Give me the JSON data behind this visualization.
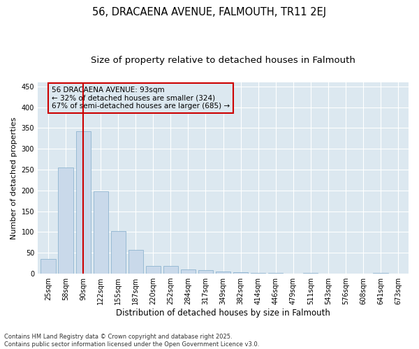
{
  "title": "56, DRACAENA AVENUE, FALMOUTH, TR11 2EJ",
  "subtitle": "Size of property relative to detached houses in Falmouth",
  "xlabel": "Distribution of detached houses by size in Falmouth",
  "ylabel": "Number of detached properties",
  "bar_color": "#c9d9ea",
  "bar_edgecolor": "#8fb4d0",
  "plot_bg_color": "#dce8f0",
  "fig_bg_color": "#ffffff",
  "grid_color": "#ffffff",
  "categories": [
    "25sqm",
    "58sqm",
    "90sqm",
    "122sqm",
    "155sqm",
    "187sqm",
    "220sqm",
    "252sqm",
    "284sqm",
    "317sqm",
    "349sqm",
    "382sqm",
    "414sqm",
    "446sqm",
    "479sqm",
    "511sqm",
    "543sqm",
    "576sqm",
    "608sqm",
    "641sqm",
    "673sqm"
  ],
  "values": [
    35,
    255,
    342,
    198,
    103,
    57,
    19,
    18,
    10,
    8,
    6,
    3,
    1,
    1,
    0,
    1,
    0,
    0,
    0,
    1,
    0
  ],
  "ylim": [
    0,
    460
  ],
  "yticks": [
    0,
    50,
    100,
    150,
    200,
    250,
    300,
    350,
    400,
    450
  ],
  "vline_x": 2,
  "vline_color": "#cc0000",
  "annotation_text": "56 DRACAENA AVENUE: 93sqm\n← 32% of detached houses are smaller (324)\n67% of semi-detached houses are larger (685) →",
  "annotation_box_edgecolor": "#cc0000",
  "footer": "Contains HM Land Registry data © Crown copyright and database right 2025.\nContains public sector information licensed under the Open Government Licence v3.0.",
  "title_fontsize": 10.5,
  "subtitle_fontsize": 9.5,
  "xlabel_fontsize": 8.5,
  "ylabel_fontsize": 8,
  "tick_fontsize": 7,
  "annotation_fontsize": 7.5,
  "footer_fontsize": 6
}
